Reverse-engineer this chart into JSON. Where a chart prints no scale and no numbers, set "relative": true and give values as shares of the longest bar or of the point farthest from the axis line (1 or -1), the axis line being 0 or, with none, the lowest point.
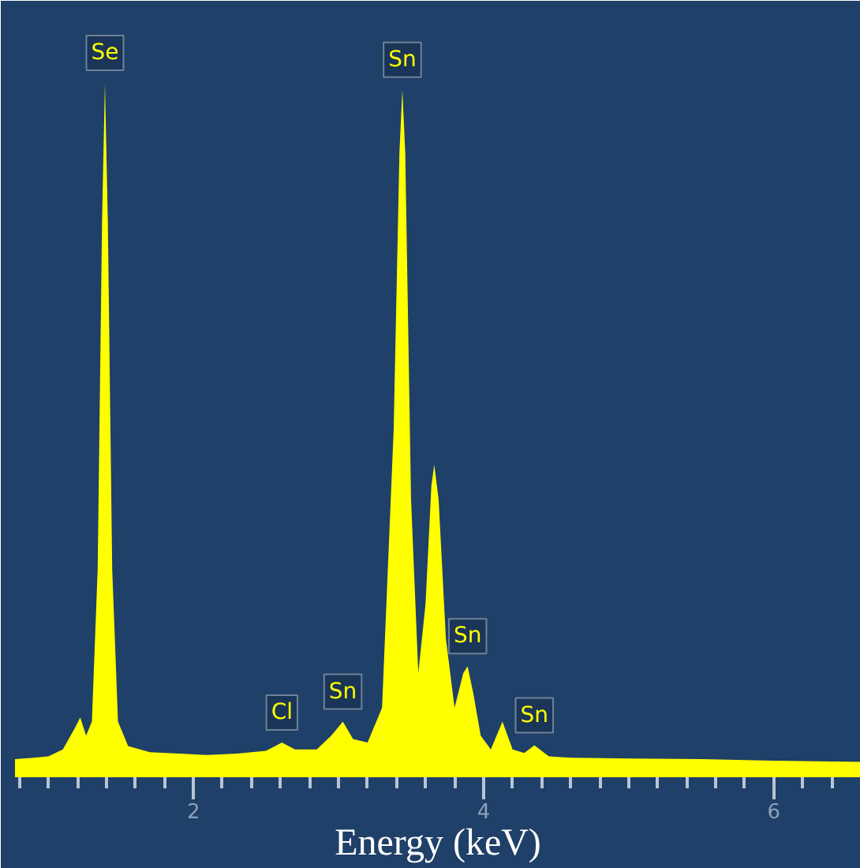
{
  "chart_data": {
    "type": "area",
    "relative": true,
    "xlabel": "Energy (keV)",
    "xlim": [
      0.77,
      6.6
    ],
    "xticks": [
      2,
      4,
      6
    ],
    "grid": false,
    "series": [
      {
        "color": "#ffff00",
        "x": [
          0.77,
          0.9,
          1.0,
          1.1,
          1.18,
          1.22,
          1.26,
          1.3,
          1.34,
          1.37,
          1.39,
          1.41,
          1.44,
          1.48,
          1.55,
          1.7,
          1.9,
          2.1,
          2.3,
          2.5,
          2.61,
          2.7,
          2.85,
          2.95,
          3.03,
          3.1,
          3.2,
          3.3,
          3.38,
          3.42,
          3.44,
          3.46,
          3.5,
          3.55,
          3.6,
          3.64,
          3.66,
          3.69,
          3.74,
          3.8,
          3.86,
          3.89,
          3.93,
          3.98,
          4.05,
          4.13,
          4.2,
          4.28,
          4.35,
          4.45,
          4.6,
          5.0,
          5.5,
          6.0,
          6.6
        ],
        "values": [
          0.026,
          0.028,
          0.03,
          0.04,
          0.07,
          0.086,
          0.06,
          0.08,
          0.3,
          0.8,
          1.0,
          0.8,
          0.3,
          0.08,
          0.045,
          0.036,
          0.034,
          0.032,
          0.034,
          0.038,
          0.05,
          0.04,
          0.04,
          0.06,
          0.08,
          0.055,
          0.05,
          0.1,
          0.5,
          0.9,
          0.99,
          0.9,
          0.4,
          0.15,
          0.25,
          0.42,
          0.45,
          0.4,
          0.2,
          0.1,
          0.15,
          0.16,
          0.12,
          0.06,
          0.04,
          0.08,
          0.04,
          0.035,
          0.046,
          0.03,
          0.028,
          0.027,
          0.026,
          0.024,
          0.022
        ]
      }
    ],
    "annotations": [
      {
        "text": "Se",
        "x": 1.39,
        "y": 1.0
      },
      {
        "text": "Sn",
        "x": 3.44,
        "y": 0.99
      },
      {
        "text": "Cl",
        "x": 2.61,
        "y": 0.05
      },
      {
        "text": "Sn",
        "x": 3.03,
        "y": 0.08
      },
      {
        "text": "Sn",
        "x": 3.89,
        "y": 0.16
      },
      {
        "text": "Sn",
        "x": 4.35,
        "y": 0.046
      }
    ]
  }
}
